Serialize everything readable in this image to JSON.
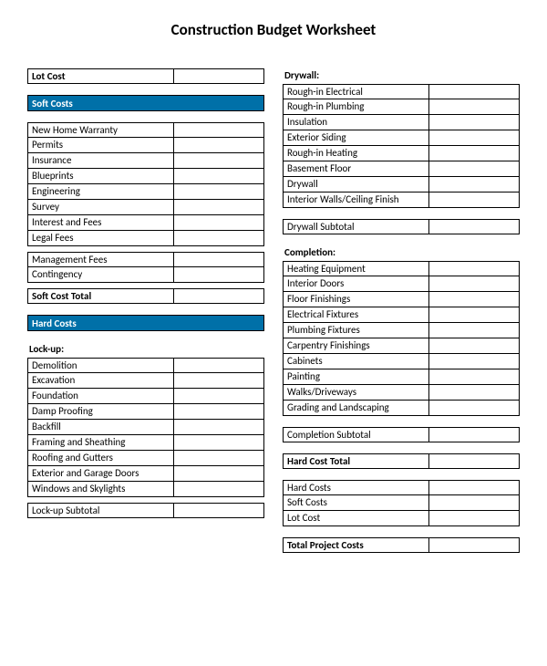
{
  "title": "Construction Budget Worksheet",
  "logo_text": "",
  "colors": {
    "header_bg": "#0070a8",
    "header_fg": "#ffffff",
    "border": "#000000"
  },
  "left": {
    "lot_cost": {
      "label": "Lot Cost"
    },
    "soft_costs_header": "Soft Costs",
    "soft_items_1": [
      "New Home Warranty",
      "Permits",
      "Insurance",
      "Blueprints",
      "Engineering",
      "Survey",
      "Interest and Fees",
      "Legal Fees"
    ],
    "soft_items_2": [
      "Management Fees",
      "Contingency"
    ],
    "soft_total": "Soft Cost Total",
    "hard_costs_header": "Hard Costs",
    "lockup_header": "Lock-up:",
    "lockup_items": [
      "Demolition",
      "Excavation",
      "Foundation",
      "Damp Proofing",
      "Backfill",
      "Framing and Sheathing",
      "Roofing and Gutters",
      "Exterior and Garage Doors",
      "Windows and Skylights"
    ],
    "lockup_subtotal": "Lock-up Subtotal"
  },
  "right": {
    "drywall_header": "Drywall:",
    "drywall_items": [
      "Rough-in Electrical",
      "Rough-in Plumbing",
      "Insulation",
      "Exterior Siding",
      "Rough-in Heating",
      "Basement Floor",
      "Drywall",
      "Interior Walls/Ceiling Finish"
    ],
    "drywall_subtotal": "Drywall Subtotal",
    "completion_header": "Completion:",
    "completion_items": [
      "Heating Equipment",
      "Interior Doors",
      "Floor Finishings",
      "Electrical Fixtures",
      "Plumbing Fixtures",
      "Carpentry Finishings",
      "Cabinets",
      "Painting",
      "Walks/Driveways",
      "Grading and Landscaping"
    ],
    "completion_subtotal": "Completion Subtotal",
    "hard_total": "Hard Cost Total",
    "summary": [
      "Hard Costs",
      "Soft Costs",
      "Lot Cost"
    ],
    "project_total": "Total Project Costs"
  }
}
